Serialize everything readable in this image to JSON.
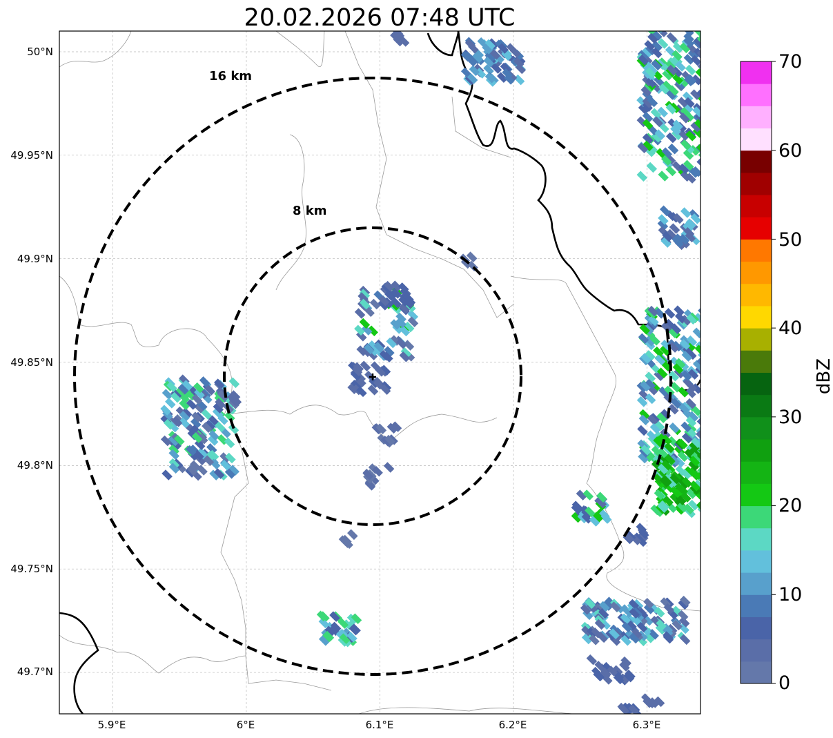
{
  "title": "20.02.2026 07:48 UTC",
  "map": {
    "lon_range": [
      5.86,
      6.34
    ],
    "lat_range": [
      49.68,
      50.01
    ],
    "lat_ticks": [
      {
        "value": 50.0,
        "label": "50°N"
      },
      {
        "value": 49.95,
        "label": "49.95°N"
      },
      {
        "value": 49.9,
        "label": "49.9°N"
      },
      {
        "value": 49.85,
        "label": "49.85°N"
      },
      {
        "value": 49.8,
        "label": "49.8°N"
      },
      {
        "value": 49.75,
        "label": "49.75°N"
      },
      {
        "value": 49.7,
        "label": "49.7°N"
      }
    ],
    "lon_ticks": [
      {
        "value": 5.9,
        "label": "5.9°E"
      },
      {
        "value": 6.0,
        "label": "6°E"
      },
      {
        "value": 6.1,
        "label": "6.1°E"
      },
      {
        "value": 6.2,
        "label": "6.2°E"
      },
      {
        "value": 6.3,
        "label": "6.3°E"
      }
    ],
    "gridlines": true,
    "radar_center": {
      "lon": 6.094,
      "lat": 49.843
    },
    "range_rings": [
      {
        "label": "8 km",
        "radius_km": 8
      },
      {
        "label": "16 km",
        "radius_km": 16
      }
    ]
  },
  "colorbar": {
    "label": "dBZ",
    "ticks": [
      "0",
      "10",
      "20",
      "30",
      "40",
      "50",
      "60",
      "70"
    ],
    "min": 0,
    "max": 70,
    "step": 2.5,
    "colors": [
      "#6478aa",
      "#5a6ea8",
      "#4a64a8",
      "#4a7ab6",
      "#58a0cc",
      "#62c0dc",
      "#5cd8c4",
      "#3cd878",
      "#14c814",
      "#14b414",
      "#10a010",
      "#10901a",
      "#0a7a14",
      "#066410",
      "#4a7a0a",
      "#a8b000",
      "#ffd800",
      "#ffb800",
      "#ff9800",
      "#ff7800",
      "#e60000",
      "#c80000",
      "#a00000",
      "#780000",
      "#ffe0ff",
      "#ffb0ff",
      "#ff70ff",
      "#f030f0"
    ]
  }
}
